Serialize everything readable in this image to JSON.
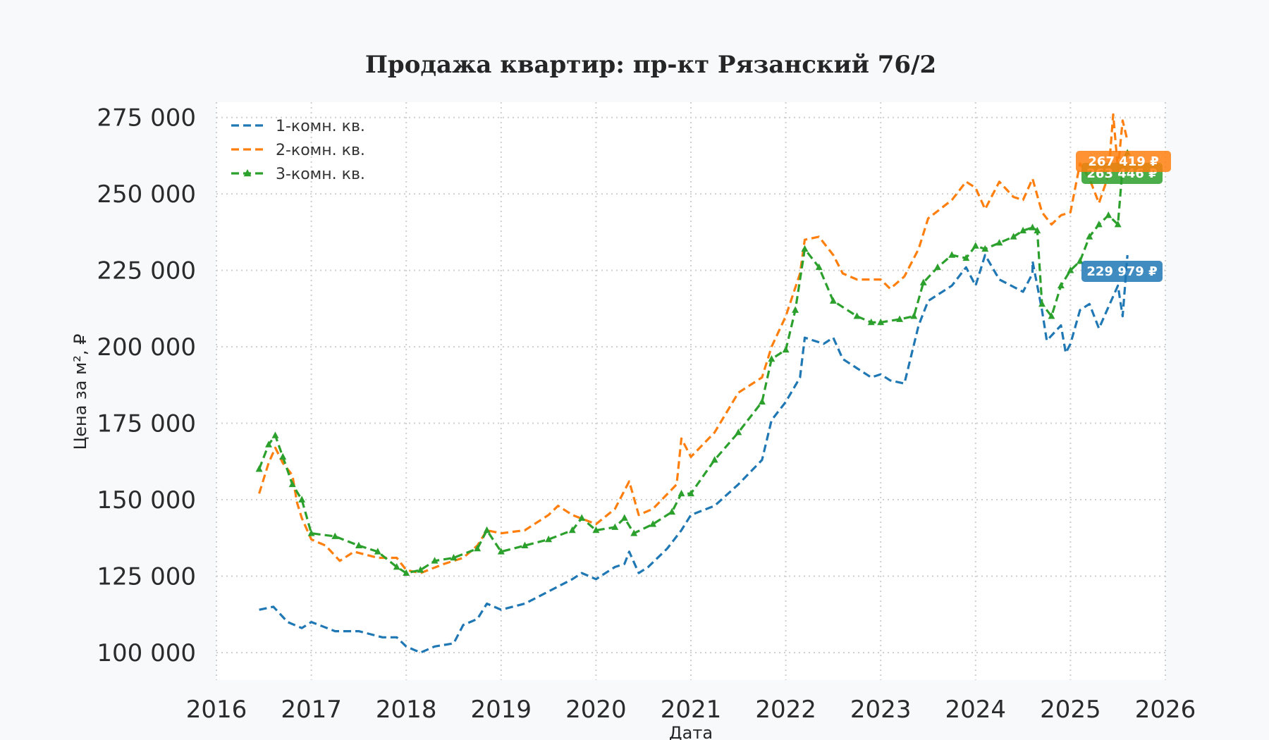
{
  "chart_data": {
    "type": "line",
    "title": "Продажа квартир: пр-кт Рязанский 76/2",
    "xlabel": "Дата",
    "ylabel": "Цена за м², ₽",
    "xlim": [
      2016.0,
      2026.0
    ],
    "ylim": [
      91000,
      280000
    ],
    "x_ticks": [
      2016,
      2017,
      2018,
      2019,
      2020,
      2021,
      2022,
      2023,
      2024,
      2025,
      2026
    ],
    "x_tick_labels": [
      "2016",
      "2017",
      "2018",
      "2019",
      "2020",
      "2021",
      "2022",
      "2023",
      "2024",
      "2025",
      "2026"
    ],
    "y_ticks": [
      100000,
      125000,
      150000,
      175000,
      200000,
      225000,
      250000,
      275000
    ],
    "y_tick_labels": [
      "100 000",
      "125 000",
      "150 000",
      "175 000",
      "200 000",
      "225 000",
      "250 000",
      "275 000"
    ],
    "grid": true,
    "legend_position": "top-left",
    "series": [
      {
        "name": "1-комн. кв.",
        "color": "#1f77b4",
        "marker": "none",
        "end_label": "229 979 ₽",
        "points": [
          [
            2016.45,
            114000
          ],
          [
            2016.6,
            115000
          ],
          [
            2016.75,
            110000
          ],
          [
            2016.9,
            108000
          ],
          [
            2017.0,
            110000
          ],
          [
            2017.25,
            107000
          ],
          [
            2017.5,
            107000
          ],
          [
            2017.75,
            105000
          ],
          [
            2017.9,
            105000
          ],
          [
            2018.0,
            102000
          ],
          [
            2018.15,
            100000
          ],
          [
            2018.3,
            102000
          ],
          [
            2018.5,
            103000
          ],
          [
            2018.6,
            109000
          ],
          [
            2018.75,
            111000
          ],
          [
            2018.85,
            116000
          ],
          [
            2019.0,
            114000
          ],
          [
            2019.25,
            116000
          ],
          [
            2019.5,
            120000
          ],
          [
            2019.75,
            124000
          ],
          [
            2019.85,
            126000
          ],
          [
            2020.0,
            124000
          ],
          [
            2020.2,
            128000
          ],
          [
            2020.3,
            129000
          ],
          [
            2020.35,
            133000
          ],
          [
            2020.45,
            126000
          ],
          [
            2020.55,
            128000
          ],
          [
            2020.75,
            134000
          ],
          [
            2020.9,
            140000
          ],
          [
            2021.0,
            145000
          ],
          [
            2021.25,
            148000
          ],
          [
            2021.5,
            155000
          ],
          [
            2021.75,
            163000
          ],
          [
            2021.85,
            176000
          ],
          [
            2022.0,
            182000
          ],
          [
            2022.15,
            190000
          ],
          [
            2022.2,
            203000
          ],
          [
            2022.4,
            201000
          ],
          [
            2022.5,
            203000
          ],
          [
            2022.6,
            196000
          ],
          [
            2022.75,
            193000
          ],
          [
            2022.9,
            190000
          ],
          [
            2023.0,
            191000
          ],
          [
            2023.1,
            189000
          ],
          [
            2023.25,
            188000
          ],
          [
            2023.4,
            207000
          ],
          [
            2023.5,
            215000
          ],
          [
            2023.75,
            220000
          ],
          [
            2023.9,
            226000
          ],
          [
            2024.0,
            220000
          ],
          [
            2024.1,
            230000
          ],
          [
            2024.25,
            222000
          ],
          [
            2024.5,
            218000
          ],
          [
            2024.6,
            224000
          ],
          [
            2024.6,
            228000
          ],
          [
            2024.7,
            212000
          ],
          [
            2024.75,
            202000
          ],
          [
            2024.9,
            207000
          ],
          [
            2024.95,
            198000
          ],
          [
            2025.0,
            201000
          ],
          [
            2025.1,
            212000
          ],
          [
            2025.2,
            214000
          ],
          [
            2025.3,
            206000
          ],
          [
            2025.4,
            213000
          ],
          [
            2025.5,
            220000
          ],
          [
            2025.55,
            210000
          ],
          [
            2025.6,
            229979
          ]
        ]
      },
      {
        "name": "2-комн. кв.",
        "color": "#ff7f0e",
        "marker": "none",
        "end_label": "267 419 ₽",
        "points": [
          [
            2016.45,
            152000
          ],
          [
            2016.55,
            162000
          ],
          [
            2016.62,
            167000
          ],
          [
            2016.7,
            162000
          ],
          [
            2016.8,
            158000
          ],
          [
            2016.85,
            149000
          ],
          [
            2016.9,
            144000
          ],
          [
            2017.0,
            137000
          ],
          [
            2017.15,
            135000
          ],
          [
            2017.3,
            130000
          ],
          [
            2017.45,
            133000
          ],
          [
            2017.7,
            131000
          ],
          [
            2017.9,
            131000
          ],
          [
            2018.0,
            127000
          ],
          [
            2018.15,
            126000
          ],
          [
            2018.4,
            129000
          ],
          [
            2018.6,
            131000
          ],
          [
            2018.75,
            135000
          ],
          [
            2018.85,
            140000
          ],
          [
            2019.0,
            139000
          ],
          [
            2019.25,
            140000
          ],
          [
            2019.5,
            145000
          ],
          [
            2019.6,
            148000
          ],
          [
            2019.75,
            145000
          ],
          [
            2020.0,
            142000
          ],
          [
            2020.2,
            147000
          ],
          [
            2020.3,
            153000
          ],
          [
            2020.35,
            156000
          ],
          [
            2020.45,
            145000
          ],
          [
            2020.6,
            147000
          ],
          [
            2020.85,
            155000
          ],
          [
            2020.9,
            170000
          ],
          [
            2021.0,
            164000
          ],
          [
            2021.25,
            172000
          ],
          [
            2021.5,
            185000
          ],
          [
            2021.75,
            190000
          ],
          [
            2021.85,
            200000
          ],
          [
            2022.0,
            210000
          ],
          [
            2022.15,
            224000
          ],
          [
            2022.2,
            235000
          ],
          [
            2022.35,
            236000
          ],
          [
            2022.5,
            230000
          ],
          [
            2022.6,
            224000
          ],
          [
            2022.75,
            222000
          ],
          [
            2023.0,
            222000
          ],
          [
            2023.1,
            219000
          ],
          [
            2023.25,
            223000
          ],
          [
            2023.4,
            232000
          ],
          [
            2023.5,
            242000
          ],
          [
            2023.75,
            248000
          ],
          [
            2023.9,
            254000
          ],
          [
            2024.0,
            252000
          ],
          [
            2024.1,
            245000
          ],
          [
            2024.25,
            254000
          ],
          [
            2024.4,
            249000
          ],
          [
            2024.5,
            248000
          ],
          [
            2024.6,
            255000
          ],
          [
            2024.7,
            244000
          ],
          [
            2024.8,
            240000
          ],
          [
            2024.9,
            243000
          ],
          [
            2025.0,
            244000
          ],
          [
            2025.1,
            260000
          ],
          [
            2025.2,
            255000
          ],
          [
            2025.3,
            247000
          ],
          [
            2025.4,
            256000
          ],
          [
            2025.45,
            276000
          ],
          [
            2025.5,
            258000
          ],
          [
            2025.55,
            274000
          ],
          [
            2025.6,
            267419
          ]
        ]
      },
      {
        "name": "3-комн. кв.",
        "color": "#2ca02c",
        "marker": "triangle",
        "end_label": "263 446 ₽",
        "points": [
          [
            2016.45,
            160000
          ],
          [
            2016.55,
            168000
          ],
          [
            2016.62,
            171000
          ],
          [
            2016.7,
            164000
          ],
          [
            2016.8,
            155000
          ],
          [
            2016.9,
            150000
          ],
          [
            2017.0,
            139000
          ],
          [
            2017.25,
            138000
          ],
          [
            2017.5,
            135000
          ],
          [
            2017.7,
            133000
          ],
          [
            2017.9,
            128000
          ],
          [
            2018.0,
            126000
          ],
          [
            2018.15,
            127000
          ],
          [
            2018.3,
            130000
          ],
          [
            2018.5,
            131000
          ],
          [
            2018.75,
            134000
          ],
          [
            2018.85,
            140000
          ],
          [
            2019.0,
            133000
          ],
          [
            2019.25,
            135000
          ],
          [
            2019.5,
            137000
          ],
          [
            2019.75,
            140000
          ],
          [
            2019.85,
            144000
          ],
          [
            2020.0,
            140000
          ],
          [
            2020.2,
            141000
          ],
          [
            2020.3,
            144000
          ],
          [
            2020.4,
            139000
          ],
          [
            2020.6,
            142000
          ],
          [
            2020.8,
            146000
          ],
          [
            2020.9,
            152000
          ],
          [
            2021.0,
            152000
          ],
          [
            2021.25,
            163000
          ],
          [
            2021.5,
            172000
          ],
          [
            2021.75,
            182000
          ],
          [
            2021.85,
            196000
          ],
          [
            2022.0,
            199000
          ],
          [
            2022.1,
            212000
          ],
          [
            2022.2,
            232000
          ],
          [
            2022.35,
            226000
          ],
          [
            2022.5,
            215000
          ],
          [
            2022.75,
            210000
          ],
          [
            2022.9,
            208000
          ],
          [
            2023.0,
            208000
          ],
          [
            2023.2,
            209000
          ],
          [
            2023.35,
            210000
          ],
          [
            2023.45,
            221000
          ],
          [
            2023.6,
            226000
          ],
          [
            2023.75,
            230000
          ],
          [
            2023.9,
            229000
          ],
          [
            2024.0,
            233000
          ],
          [
            2024.1,
            232000
          ],
          [
            2024.25,
            234000
          ],
          [
            2024.4,
            236000
          ],
          [
            2024.5,
            238000
          ],
          [
            2024.6,
            239000
          ],
          [
            2024.65,
            238000
          ],
          [
            2024.7,
            214000
          ],
          [
            2024.8,
            210000
          ],
          [
            2024.9,
            220000
          ],
          [
            2025.0,
            225000
          ],
          [
            2025.1,
            228000
          ],
          [
            2025.2,
            236000
          ],
          [
            2025.3,
            240000
          ],
          [
            2025.4,
            243000
          ],
          [
            2025.5,
            240000
          ],
          [
            2025.55,
            259000
          ],
          [
            2025.6,
            263446
          ]
        ]
      }
    ]
  }
}
